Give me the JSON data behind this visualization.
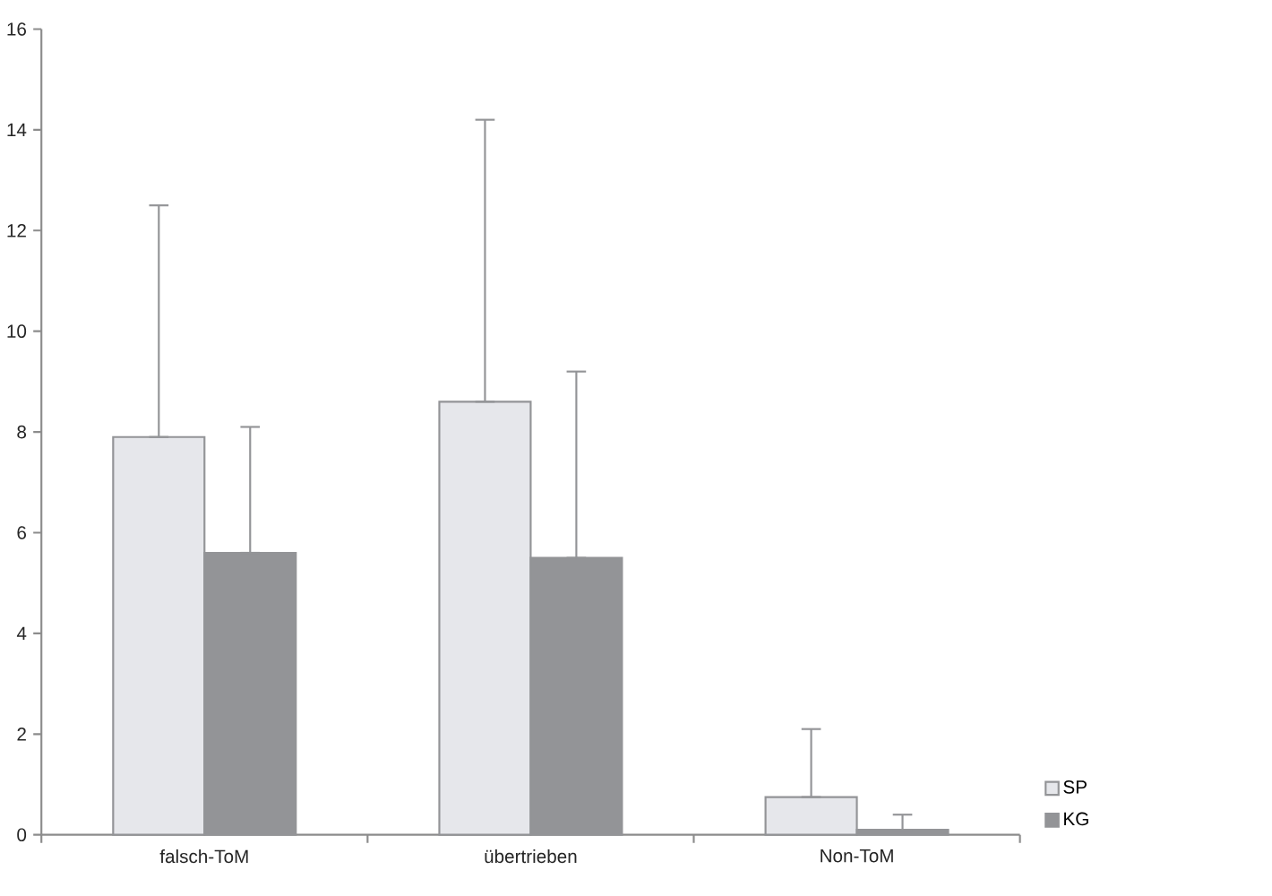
{
  "chart_data": {
    "type": "bar",
    "categories": [
      "falsch-ToM",
      "übertrieben",
      "Non-ToM"
    ],
    "series": [
      {
        "name": "SP",
        "color": "#e6e7eb",
        "values": [
          7.9,
          8.6,
          0.75
        ],
        "errors": [
          [
            7.9,
            12.5
          ],
          [
            8.6,
            14.2
          ],
          [
            0.75,
            2.1
          ]
        ]
      },
      {
        "name": "KG",
        "color": "#939497",
        "values": [
          5.6,
          5.5,
          0.1
        ],
        "errors": [
          [
            5.6,
            8.1
          ],
          [
            5.5,
            9.2
          ],
          [
            0.1,
            0.4
          ]
        ]
      }
    ],
    "ylim": [
      0,
      16
    ],
    "yticks": [
      0,
      2,
      4,
      6,
      8,
      10,
      12,
      14,
      16
    ],
    "legend": "bottom right",
    "grid": false
  }
}
